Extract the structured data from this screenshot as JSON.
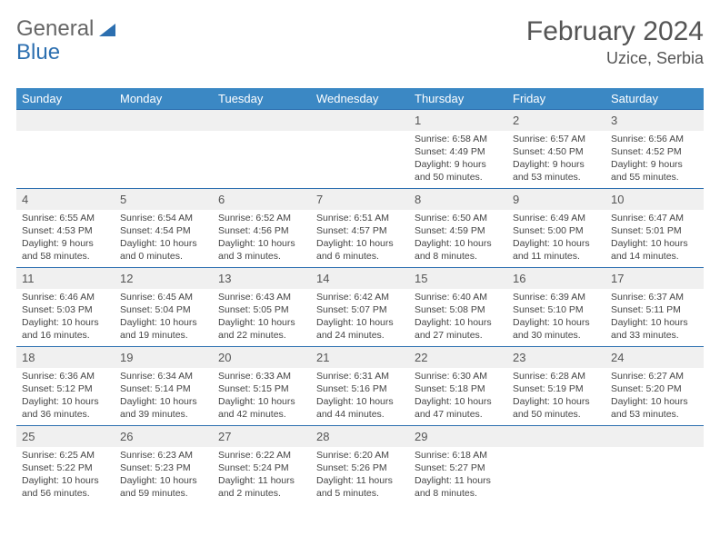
{
  "logo": {
    "text1": "General",
    "text2": "Blue"
  },
  "title": "February 2024",
  "location": "Uzice, Serbia",
  "dayHeaders": [
    "Sunday",
    "Monday",
    "Tuesday",
    "Wednesday",
    "Thursday",
    "Friday",
    "Saturday"
  ],
  "colors": {
    "headerBg": "#3b88c4",
    "headerText": "#ffffff",
    "daynumBg": "#f0f0f0",
    "borderTop": "#2c6fb0",
    "logoBlue": "#2c6fb0",
    "textGray": "#555555"
  },
  "weeks": [
    [
      null,
      null,
      null,
      null,
      {
        "n": "1",
        "sr": "6:58 AM",
        "ss": "4:49 PM",
        "dl": "9 hours and 50 minutes."
      },
      {
        "n": "2",
        "sr": "6:57 AM",
        "ss": "4:50 PM",
        "dl": "9 hours and 53 minutes."
      },
      {
        "n": "3",
        "sr": "6:56 AM",
        "ss": "4:52 PM",
        "dl": "9 hours and 55 minutes."
      }
    ],
    [
      {
        "n": "4",
        "sr": "6:55 AM",
        "ss": "4:53 PM",
        "dl": "9 hours and 58 minutes."
      },
      {
        "n": "5",
        "sr": "6:54 AM",
        "ss": "4:54 PM",
        "dl": "10 hours and 0 minutes."
      },
      {
        "n": "6",
        "sr": "6:52 AM",
        "ss": "4:56 PM",
        "dl": "10 hours and 3 minutes."
      },
      {
        "n": "7",
        "sr": "6:51 AM",
        "ss": "4:57 PM",
        "dl": "10 hours and 6 minutes."
      },
      {
        "n": "8",
        "sr": "6:50 AM",
        "ss": "4:59 PM",
        "dl": "10 hours and 8 minutes."
      },
      {
        "n": "9",
        "sr": "6:49 AM",
        "ss": "5:00 PM",
        "dl": "10 hours and 11 minutes."
      },
      {
        "n": "10",
        "sr": "6:47 AM",
        "ss": "5:01 PM",
        "dl": "10 hours and 14 minutes."
      }
    ],
    [
      {
        "n": "11",
        "sr": "6:46 AM",
        "ss": "5:03 PM",
        "dl": "10 hours and 16 minutes."
      },
      {
        "n": "12",
        "sr": "6:45 AM",
        "ss": "5:04 PM",
        "dl": "10 hours and 19 minutes."
      },
      {
        "n": "13",
        "sr": "6:43 AM",
        "ss": "5:05 PM",
        "dl": "10 hours and 22 minutes."
      },
      {
        "n": "14",
        "sr": "6:42 AM",
        "ss": "5:07 PM",
        "dl": "10 hours and 24 minutes."
      },
      {
        "n": "15",
        "sr": "6:40 AM",
        "ss": "5:08 PM",
        "dl": "10 hours and 27 minutes."
      },
      {
        "n": "16",
        "sr": "6:39 AM",
        "ss": "5:10 PM",
        "dl": "10 hours and 30 minutes."
      },
      {
        "n": "17",
        "sr": "6:37 AM",
        "ss": "5:11 PM",
        "dl": "10 hours and 33 minutes."
      }
    ],
    [
      {
        "n": "18",
        "sr": "6:36 AM",
        "ss": "5:12 PM",
        "dl": "10 hours and 36 minutes."
      },
      {
        "n": "19",
        "sr": "6:34 AM",
        "ss": "5:14 PM",
        "dl": "10 hours and 39 minutes."
      },
      {
        "n": "20",
        "sr": "6:33 AM",
        "ss": "5:15 PM",
        "dl": "10 hours and 42 minutes."
      },
      {
        "n": "21",
        "sr": "6:31 AM",
        "ss": "5:16 PM",
        "dl": "10 hours and 44 minutes."
      },
      {
        "n": "22",
        "sr": "6:30 AM",
        "ss": "5:18 PM",
        "dl": "10 hours and 47 minutes."
      },
      {
        "n": "23",
        "sr": "6:28 AM",
        "ss": "5:19 PM",
        "dl": "10 hours and 50 minutes."
      },
      {
        "n": "24",
        "sr": "6:27 AM",
        "ss": "5:20 PM",
        "dl": "10 hours and 53 minutes."
      }
    ],
    [
      {
        "n": "25",
        "sr": "6:25 AM",
        "ss": "5:22 PM",
        "dl": "10 hours and 56 minutes."
      },
      {
        "n": "26",
        "sr": "6:23 AM",
        "ss": "5:23 PM",
        "dl": "10 hours and 59 minutes."
      },
      {
        "n": "27",
        "sr": "6:22 AM",
        "ss": "5:24 PM",
        "dl": "11 hours and 2 minutes."
      },
      {
        "n": "28",
        "sr": "6:20 AM",
        "ss": "5:26 PM",
        "dl": "11 hours and 5 minutes."
      },
      {
        "n": "29",
        "sr": "6:18 AM",
        "ss": "5:27 PM",
        "dl": "11 hours and 8 minutes."
      },
      null,
      null
    ]
  ],
  "labels": {
    "sunrise": "Sunrise:",
    "sunset": "Sunset:",
    "daylight": "Daylight:"
  }
}
